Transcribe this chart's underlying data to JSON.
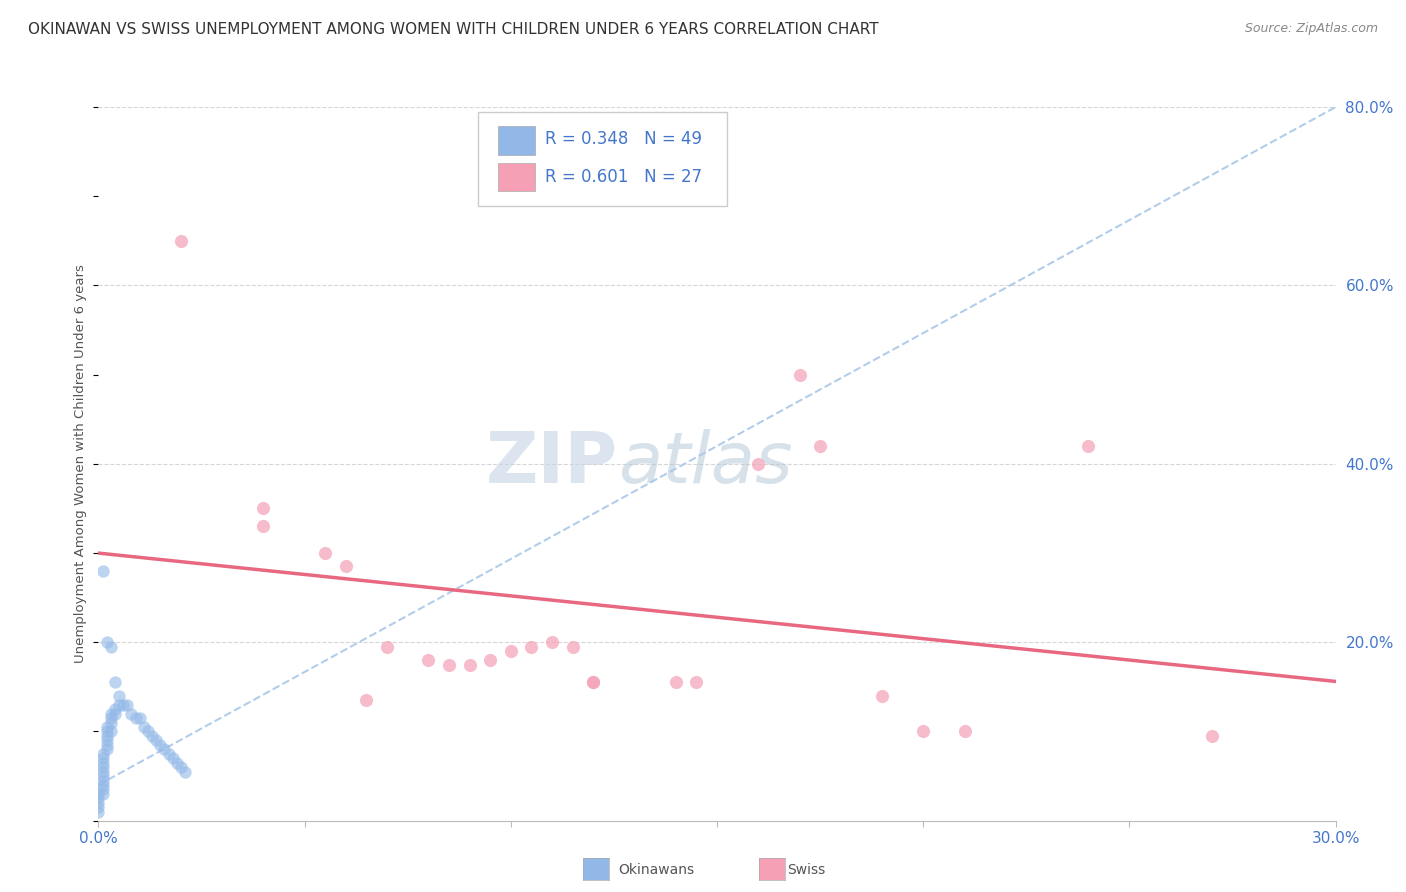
{
  "title": "OKINAWAN VS SWISS UNEMPLOYMENT AMONG WOMEN WITH CHILDREN UNDER 6 YEARS CORRELATION CHART",
  "source": "Source: ZipAtlas.com",
  "ylabel": "Unemployment Among Women with Children Under 6 years",
  "xlim": [
    0.0,
    0.3
  ],
  "ylim": [
    0.0,
    0.8
  ],
  "yticks": [
    0.0,
    0.2,
    0.4,
    0.6,
    0.8
  ],
  "ytick_labels": [
    "",
    "20.0%",
    "40.0%",
    "60.0%",
    "80.0%"
  ],
  "xticks": [
    0.0,
    0.05,
    0.1,
    0.15,
    0.2,
    0.25,
    0.3
  ],
  "legend_okinawan_R": "0.348",
  "legend_okinawan_N": "49",
  "legend_swiss_R": "0.601",
  "legend_swiss_N": "27",
  "okinawan_color": "#92b8e8",
  "swiss_color": "#f5a0b5",
  "okinawan_line_color": "#aac8e8",
  "swiss_line_color": "#e8607a",
  "background_color": "#ffffff",
  "watermark_zip_color": "#c8d8e8",
  "watermark_atlas_color": "#b8c8d8",
  "title_fontsize": 11,
  "source_fontsize": 9,
  "okinawan_points": [
    [
      0.001,
      0.28
    ],
    [
      0.002,
      0.2
    ],
    [
      0.003,
      0.195
    ],
    [
      0.004,
      0.155
    ],
    [
      0.005,
      0.14
    ],
    [
      0.006,
      0.13
    ],
    [
      0.007,
      0.13
    ],
    [
      0.008,
      0.12
    ],
    [
      0.009,
      0.115
    ],
    [
      0.01,
      0.115
    ],
    [
      0.011,
      0.105
    ],
    [
      0.012,
      0.1
    ],
    [
      0.013,
      0.095
    ],
    [
      0.014,
      0.09
    ],
    [
      0.015,
      0.085
    ],
    [
      0.016,
      0.08
    ],
    [
      0.017,
      0.075
    ],
    [
      0.018,
      0.07
    ],
    [
      0.019,
      0.065
    ],
    [
      0.02,
      0.06
    ],
    [
      0.021,
      0.055
    ],
    [
      0.0,
      0.01
    ],
    [
      0.0,
      0.015
    ],
    [
      0.0,
      0.02
    ],
    [
      0.0,
      0.025
    ],
    [
      0.0,
      0.03
    ],
    [
      0.001,
      0.03
    ],
    [
      0.001,
      0.035
    ],
    [
      0.001,
      0.04
    ],
    [
      0.001,
      0.045
    ],
    [
      0.001,
      0.05
    ],
    [
      0.001,
      0.055
    ],
    [
      0.001,
      0.06
    ],
    [
      0.001,
      0.065
    ],
    [
      0.001,
      0.07
    ],
    [
      0.001,
      0.075
    ],
    [
      0.002,
      0.08
    ],
    [
      0.002,
      0.085
    ],
    [
      0.002,
      0.09
    ],
    [
      0.002,
      0.095
    ],
    [
      0.002,
      0.1
    ],
    [
      0.002,
      0.105
    ],
    [
      0.003,
      0.1
    ],
    [
      0.003,
      0.11
    ],
    [
      0.003,
      0.115
    ],
    [
      0.003,
      0.12
    ],
    [
      0.004,
      0.12
    ],
    [
      0.004,
      0.125
    ],
    [
      0.005,
      0.13
    ]
  ],
  "swiss_points": [
    [
      0.02,
      0.65
    ],
    [
      0.04,
      0.35
    ],
    [
      0.04,
      0.33
    ],
    [
      0.055,
      0.3
    ],
    [
      0.06,
      0.285
    ],
    [
      0.065,
      0.135
    ],
    [
      0.07,
      0.195
    ],
    [
      0.08,
      0.18
    ],
    [
      0.085,
      0.175
    ],
    [
      0.09,
      0.175
    ],
    [
      0.095,
      0.18
    ],
    [
      0.1,
      0.19
    ],
    [
      0.105,
      0.195
    ],
    [
      0.11,
      0.2
    ],
    [
      0.115,
      0.195
    ],
    [
      0.12,
      0.155
    ],
    [
      0.12,
      0.155
    ],
    [
      0.14,
      0.155
    ],
    [
      0.145,
      0.155
    ],
    [
      0.16,
      0.4
    ],
    [
      0.17,
      0.5
    ],
    [
      0.175,
      0.42
    ],
    [
      0.19,
      0.14
    ],
    [
      0.2,
      0.1
    ],
    [
      0.21,
      0.1
    ],
    [
      0.24,
      0.42
    ],
    [
      0.27,
      0.095
    ]
  ],
  "okinawan_trend": [
    0.0,
    0.04,
    0.3,
    0.8
  ],
  "swiss_trend_start_x": 0.0,
  "swiss_trend_end_x": 0.3
}
